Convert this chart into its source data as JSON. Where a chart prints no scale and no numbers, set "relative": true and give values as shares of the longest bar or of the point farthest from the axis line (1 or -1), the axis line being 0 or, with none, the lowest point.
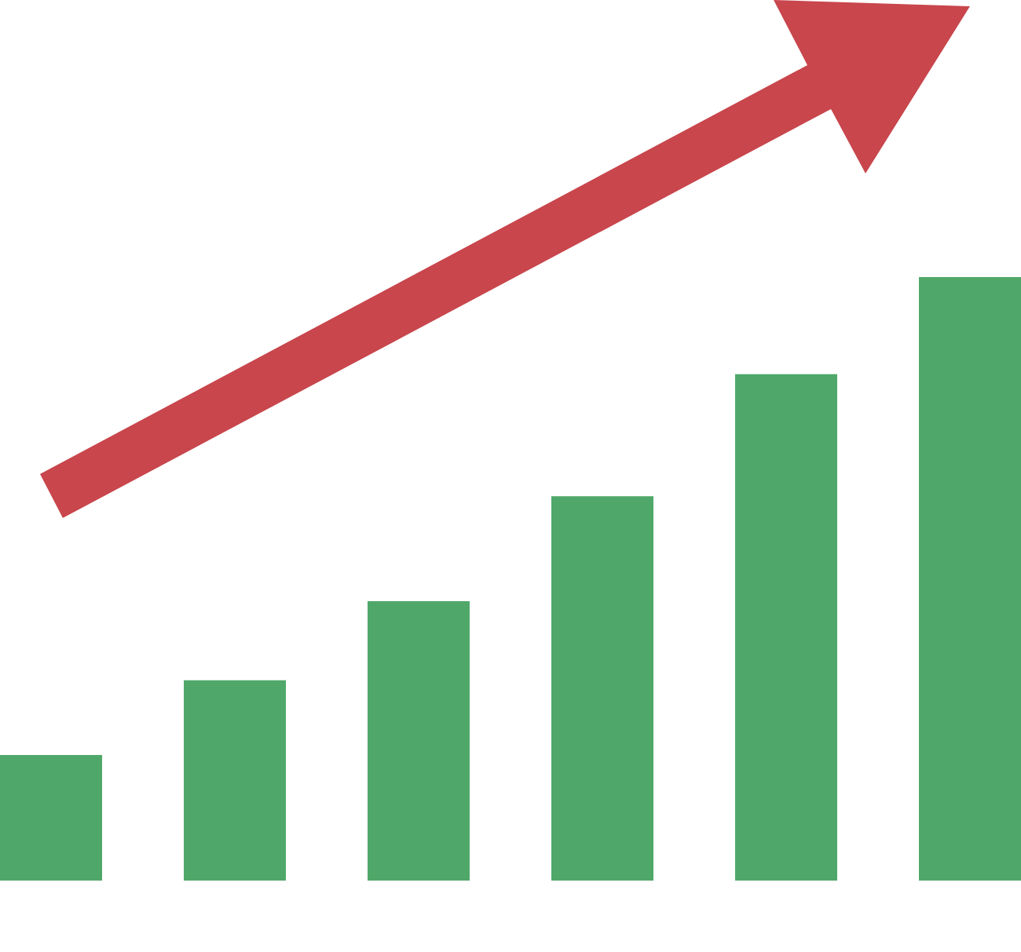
{
  "chart_data": {
    "type": "bar",
    "relative": true,
    "categories": [
      null,
      null,
      null,
      null,
      null,
      null
    ],
    "values": [
      0.208,
      0.332,
      0.463,
      0.637,
      0.839,
      1
    ],
    "color": "#4fa86a"
  }
}
